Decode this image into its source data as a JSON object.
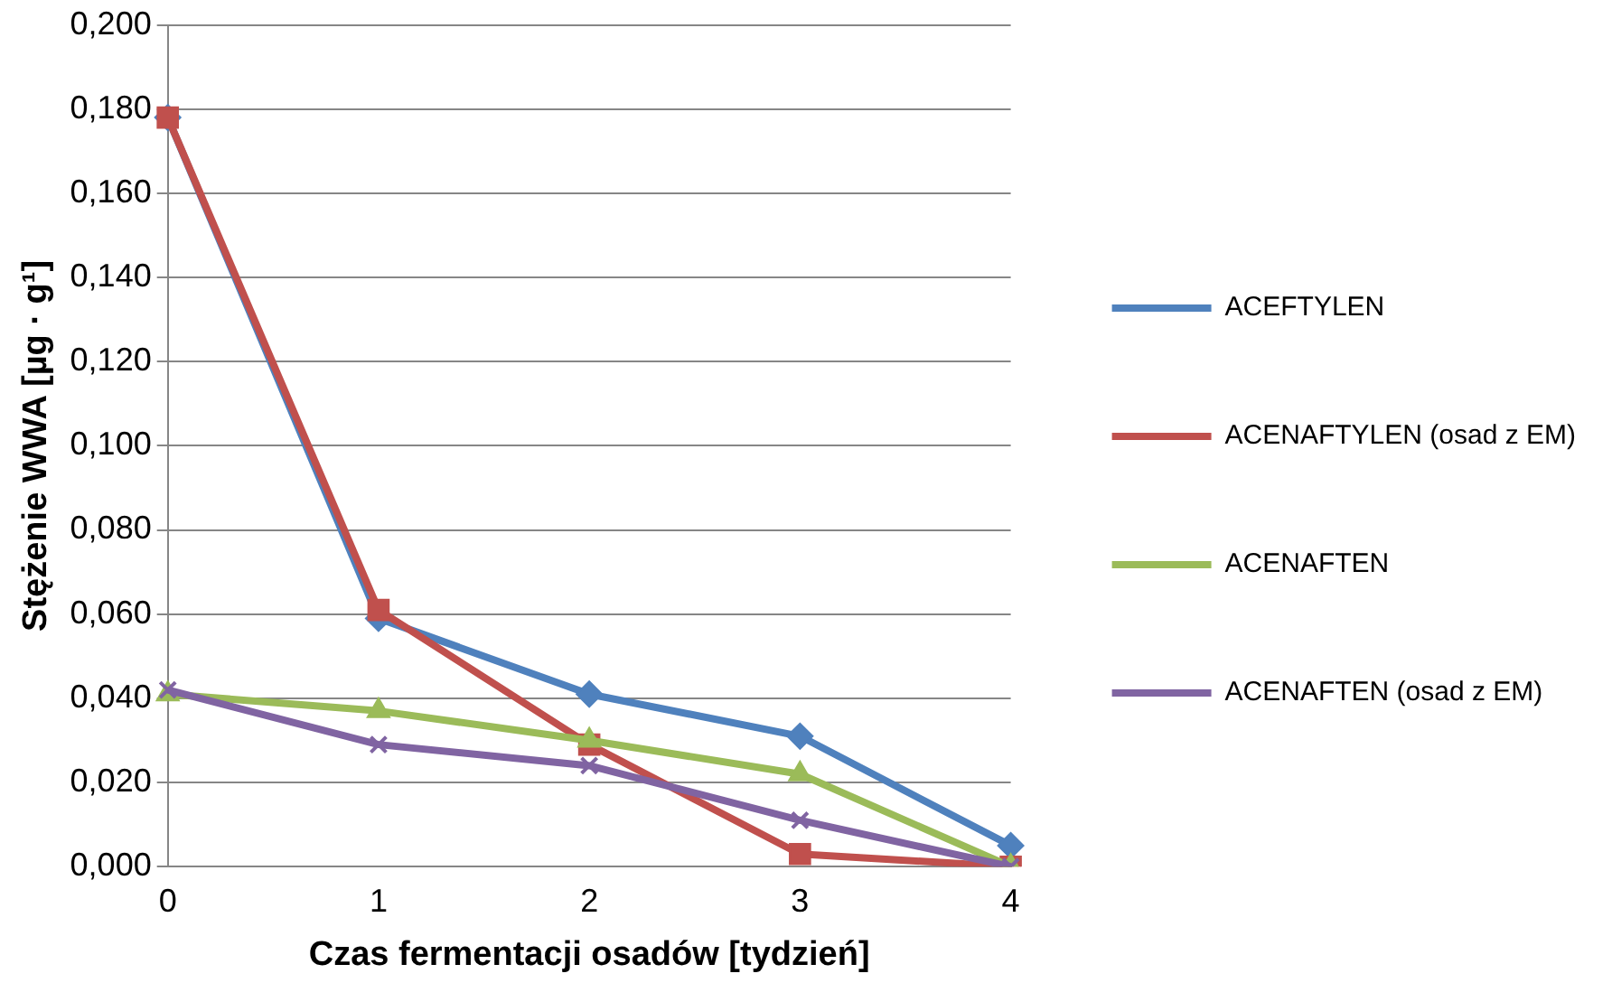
{
  "chart_data": {
    "type": "line",
    "xlabel": "Czas fermentacji osadów [tydzień]",
    "ylabel": "Stężenie WWA [µg · g¹]",
    "categories": [
      "0",
      "1",
      "2",
      "3",
      "4"
    ],
    "series": [
      {
        "name": "ACEFTYLEN",
        "color": "#4f81bd",
        "marker": "diamond",
        "values": [
          0.178,
          0.059,
          0.041,
          0.031,
          0.005
        ]
      },
      {
        "name": "ACENAFTYLEN (osad z EM)",
        "color": "#c0504d",
        "marker": "square",
        "values": [
          0.178,
          0.061,
          0.029,
          0.003,
          0.0
        ]
      },
      {
        "name": "ACENAFTEN",
        "color": "#9bbb59",
        "marker": "triangle",
        "values": [
          0.041,
          0.037,
          0.03,
          0.022,
          0.0
        ]
      },
      {
        "name": "ACENAFTEN (osad z EM)",
        "color": "#8064a2",
        "marker": "cross",
        "values": [
          0.042,
          0.029,
          0.024,
          0.011,
          0.0
        ]
      }
    ],
    "ylim": [
      0,
      0.2
    ],
    "yticks": [
      {
        "value": 0,
        "label": "0,000"
      },
      {
        "value": 0.02,
        "label": "0,020"
      },
      {
        "value": 0.04,
        "label": "0,040"
      },
      {
        "value": 0.06,
        "label": "0,060"
      },
      {
        "value": 0.08,
        "label": "0,080"
      },
      {
        "value": 0.1,
        "label": "0,100"
      },
      {
        "value": 0.12,
        "label": "0,120"
      },
      {
        "value": 0.14,
        "label": "0,140"
      },
      {
        "value": 0.16,
        "label": "0,160"
      },
      {
        "value": 0.18,
        "label": "0,180"
      },
      {
        "value": 0.2,
        "label": "0,200"
      }
    ],
    "grid": "y",
    "legend": "right",
    "line_style": "solid"
  }
}
